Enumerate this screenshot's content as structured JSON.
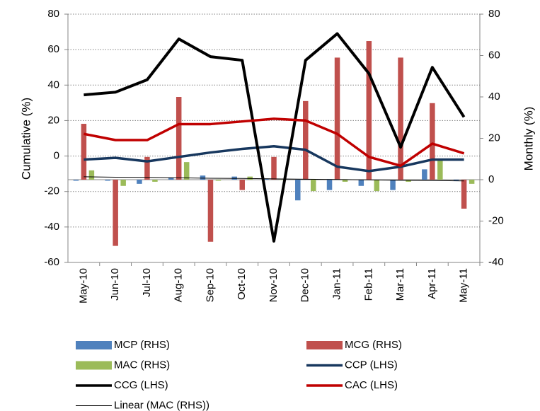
{
  "chart_data": {
    "type": "bar",
    "categories": [
      "May-10",
      "Jun-10",
      "Jul-10",
      "Aug-10",
      "Sep-10",
      "Oct-10",
      "Nov-10",
      "Dec-10",
      "Jan-11",
      "Feb-11",
      "Mar-11",
      "Apr-11",
      "May-11"
    ],
    "y_label": "Cumulative (%)",
    "y2_label": "Monthly (%)",
    "ylim": [
      -60,
      80
    ],
    "yticks": [
      -60,
      -40,
      -20,
      0,
      20,
      40,
      60,
      80
    ],
    "y2lim": [
      -40,
      80
    ],
    "y2ticks": [
      -40,
      -20,
      0,
      20,
      40,
      60,
      80
    ],
    "grid": true,
    "series": [
      {
        "name": "MCP (RHS)",
        "type": "bar",
        "axis": "y2",
        "color": "#4f81bd",
        "values": [
          -0.5,
          -0.5,
          -2,
          1,
          2,
          1.5,
          0.5,
          -10,
          -5,
          -3,
          -5,
          5,
          -0.5
        ]
      },
      {
        "name": "MCG (RHS)",
        "type": "bar",
        "axis": "y2",
        "color": "#c0504d",
        "values": [
          27,
          -32,
          11,
          40,
          -30,
          -5,
          11,
          38,
          59,
          67,
          59,
          37,
          -14
        ]
      },
      {
        "name": "MAC (RHS)",
        "type": "bar",
        "axis": "y2",
        "color": "#9bbb59",
        "values": [
          4.5,
          -3,
          -1,
          8.5,
          -0.5,
          1.5,
          0,
          -5.5,
          -1,
          -5.5,
          -1,
          10,
          -2
        ]
      },
      {
        "name": "CCP (LHS)",
        "type": "line",
        "axis": "y",
        "color": "#17375e",
        "values": [
          -2,
          -1,
          -3,
          -0.5,
          2,
          4,
          5.5,
          3.5,
          -6,
          -8.5,
          -6,
          -2,
          -2
        ]
      },
      {
        "name": "CCG (LHS)",
        "type": "line",
        "axis": "y",
        "color": "#000000",
        "values": [
          34.5,
          36,
          43,
          66,
          56,
          54,
          -48,
          54,
          69,
          46.5,
          5,
          50,
          22
        ]
      },
      {
        "name": "CAC (LHS)",
        "type": "line",
        "axis": "y",
        "color": "#c00000",
        "values": [
          12.5,
          9,
          9,
          18,
          18,
          19.5,
          21,
          20,
          12.5,
          -0.5,
          -5.5,
          7,
          1.5
        ]
      },
      {
        "name": "Linear (MAC (RHS))",
        "type": "trend",
        "axis": "y2",
        "color": "#000000",
        "values": [
          1.4,
          1.2,
          1.1,
          0.9,
          0.7,
          0.6,
          0.4,
          0.2,
          0.1,
          -0.1,
          -0.3,
          -0.4,
          -0.6
        ]
      }
    ]
  }
}
